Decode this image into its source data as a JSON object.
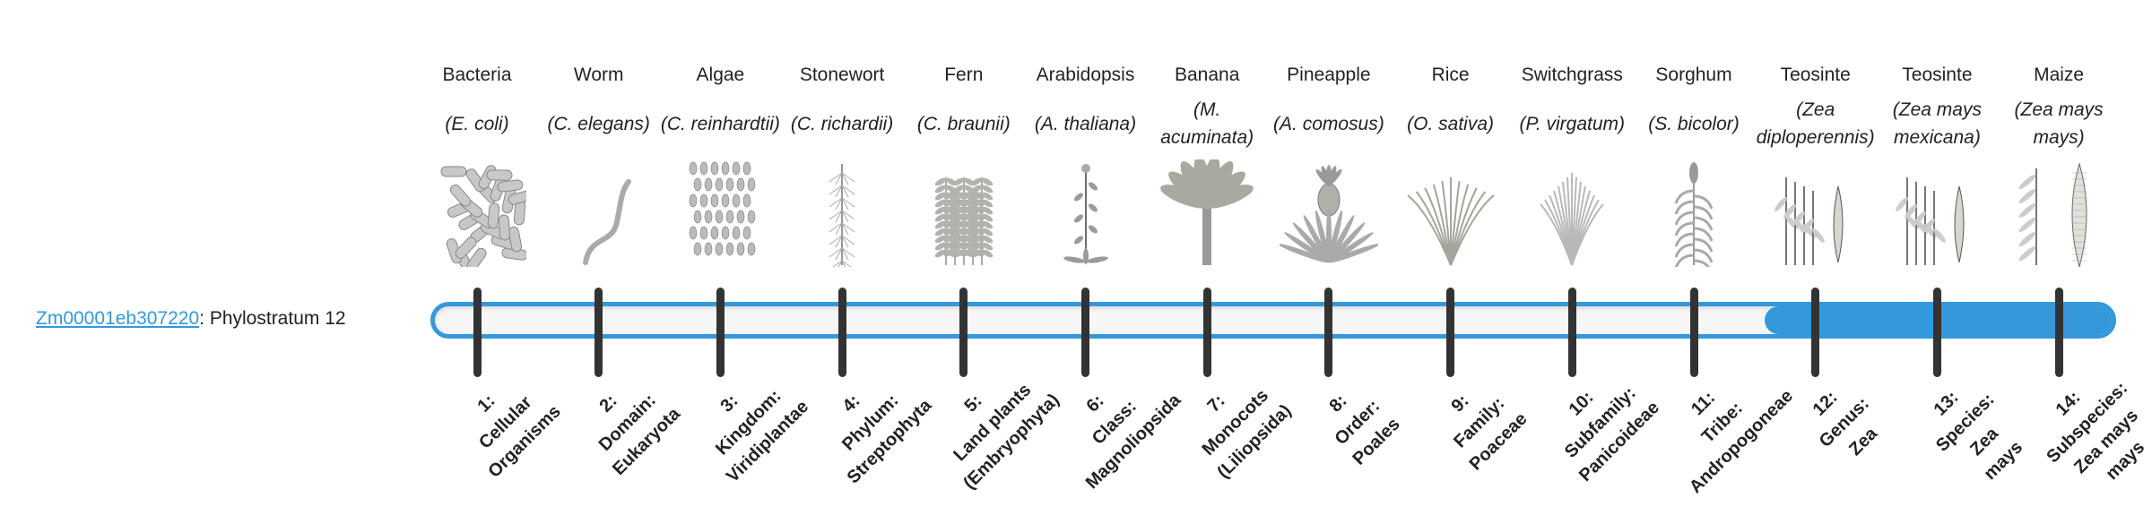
{
  "gene": {
    "id": "Zm00001eb307220",
    "suffix": ": Phylostratum 12",
    "phylostratum": 12
  },
  "colors": {
    "accent": "#3498db",
    "tick": "#333333",
    "track": "#f6f6f6"
  },
  "organisms": [
    {
      "name": "Bacteria",
      "species": "(E. coli)",
      "icon": "bacteria-rods"
    },
    {
      "name": "Worm",
      "species": "(C. elegans)",
      "icon": "worm"
    },
    {
      "name": "Algae",
      "species": "(C. reinhardtii)",
      "icon": "algae-cells"
    },
    {
      "name": "Stonewort",
      "species": "(C. richardii)",
      "icon": "stonewort"
    },
    {
      "name": "Fern",
      "species": "(C. braunii)",
      "icon": "fern"
    },
    {
      "name": "Arabidopsis",
      "species": "(A. thaliana)",
      "icon": "arabidopsis"
    },
    {
      "name": "Banana",
      "species": "(M. acuminata)",
      "icon": "banana-plant"
    },
    {
      "name": "Pineapple",
      "species": "(A. comosus)",
      "icon": "pineapple"
    },
    {
      "name": "Rice",
      "species": "(O. sativa)",
      "icon": "rice"
    },
    {
      "name": "Switchgrass",
      "species": "(P. virgatum)",
      "icon": "switchgrass"
    },
    {
      "name": "Sorghum",
      "species": "(S. bicolor)",
      "icon": "sorghum"
    },
    {
      "name": "Teosinte",
      "species": "(Zea diploperennis)",
      "icon": "teosinte"
    },
    {
      "name": "Teosinte",
      "species": "(Zea mays mexicana)",
      "icon": "teosinte"
    },
    {
      "name": "Maize",
      "species": "(Zea mays mays)",
      "icon": "maize"
    }
  ],
  "strata": [
    [
      "1:",
      "Cellular",
      "Organisms"
    ],
    [
      "2:",
      "Domain:",
      "Eukaryota"
    ],
    [
      "3:",
      "Kingdom:",
      "Viridiplantae"
    ],
    [
      "4:",
      "Phylum:",
      "Streptophyta"
    ],
    [
      "5:",
      "Land plants",
      "(Embryophyta)"
    ],
    [
      "6:",
      "Class:",
      "Magnoliopsida"
    ],
    [
      "7:",
      "Monocots",
      "(Liliopsida)"
    ],
    [
      "8:",
      "Order:",
      "Poales"
    ],
    [
      "9:",
      "Family:",
      "Poaceae"
    ],
    [
      "10:",
      "Subfamily:",
      "Panicoideae"
    ],
    [
      "11:",
      "Tribe:",
      "Andropogoneae"
    ],
    [
      "12:",
      "Genus:",
      "Zea"
    ],
    [
      "13:",
      "Species:",
      "Zea",
      "mays"
    ],
    [
      "14:",
      "Subspecies:",
      "Zea mays",
      "mays"
    ]
  ]
}
